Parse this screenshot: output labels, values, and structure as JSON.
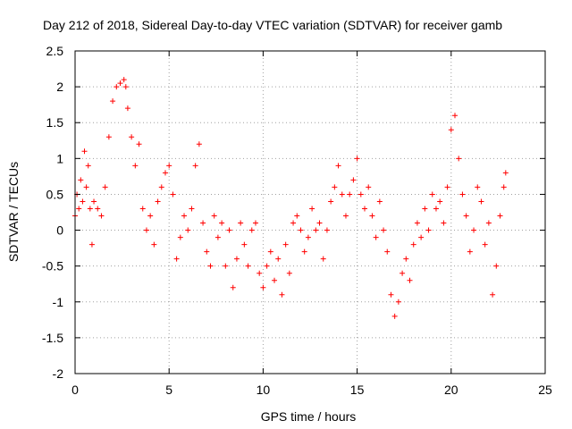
{
  "chart_data": {
    "type": "scatter",
    "title": "Day 212 of 2018, Sidereal Day-to-day VTEC variation (SDTVAR) for receiver gamb",
    "xlabel": "GPS time / hours",
    "ylabel": "SDTVAR / TECUs",
    "xlim": [
      0,
      25
    ],
    "ylim": [
      -2,
      2.5
    ],
    "xticks": [
      "0",
      "5",
      "10",
      "15",
      "20",
      "25"
    ],
    "yticks": [
      "-2",
      "-1.5",
      "-1",
      "-0.5",
      "0",
      "0.5",
      "1",
      "1.5",
      "2",
      "2.5"
    ],
    "grid": true,
    "marker": "+",
    "color": "#ff0000",
    "series": [
      {
        "name": "SDTVAR",
        "x": [
          0.0,
          0.1,
          0.2,
          0.3,
          0.4,
          0.5,
          0.6,
          0.7,
          0.8,
          0.9,
          1.0,
          1.2,
          1.4,
          1.6,
          1.8,
          2.0,
          2.2,
          2.4,
          2.6,
          2.7,
          2.8,
          3.0,
          3.2,
          3.4,
          3.6,
          3.8,
          4.0,
          4.2,
          4.4,
          4.6,
          4.8,
          5.0,
          5.2,
          5.4,
          5.6,
          5.8,
          6.0,
          6.2,
          6.4,
          6.6,
          6.8,
          7.0,
          7.2,
          7.4,
          7.6,
          7.8,
          8.0,
          8.2,
          8.4,
          8.6,
          8.8,
          9.0,
          9.2,
          9.4,
          9.6,
          9.8,
          10.0,
          10.2,
          10.4,
          10.6,
          10.8,
          11.0,
          11.2,
          11.4,
          11.6,
          11.8,
          12.0,
          12.2,
          12.4,
          12.6,
          12.8,
          13.0,
          13.2,
          13.4,
          13.6,
          13.8,
          14.0,
          14.2,
          14.4,
          14.6,
          14.8,
          15.0,
          15.2,
          15.4,
          15.6,
          15.8,
          16.0,
          16.2,
          16.4,
          16.6,
          16.8,
          17.0,
          17.2,
          17.4,
          17.6,
          17.8,
          18.0,
          18.2,
          18.4,
          18.6,
          18.8,
          19.0,
          19.2,
          19.4,
          19.6,
          19.8,
          20.0,
          20.2,
          20.4,
          20.6,
          20.8,
          21.0,
          21.2,
          21.4,
          21.6,
          21.8,
          22.0,
          22.2,
          22.4,
          22.6,
          22.8,
          22.9
        ],
        "y": [
          0.2,
          0.5,
          0.3,
          0.7,
          0.4,
          1.1,
          0.6,
          0.9,
          0.3,
          -0.2,
          0.4,
          0.3,
          0.2,
          0.6,
          1.3,
          1.8,
          2.0,
          2.05,
          2.1,
          2.0,
          1.7,
          1.3,
          0.9,
          1.2,
          0.3,
          0.0,
          0.2,
          -0.2,
          0.4,
          0.6,
          0.8,
          0.9,
          0.5,
          -0.4,
          -0.1,
          0.2,
          0.0,
          0.3,
          0.9,
          1.2,
          0.1,
          -0.3,
          -0.5,
          0.2,
          -0.1,
          0.1,
          -0.5,
          0.0,
          -0.8,
          -0.4,
          0.1,
          -0.2,
          -0.5,
          0.0,
          0.1,
          -0.6,
          -0.8,
          -0.5,
          -0.3,
          -0.7,
          -0.4,
          -0.9,
          -0.2,
          -0.6,
          0.1,
          0.2,
          0.0,
          -0.3,
          -0.1,
          0.3,
          0.0,
          0.1,
          -0.4,
          0.0,
          0.4,
          0.6,
          0.9,
          0.5,
          0.2,
          0.5,
          0.7,
          1.0,
          0.5,
          0.3,
          0.6,
          0.2,
          -0.1,
          0.4,
          0.0,
          -0.3,
          -0.9,
          -1.2,
          -1.0,
          -0.6,
          -0.4,
          -0.7,
          -0.2,
          0.1,
          -0.1,
          0.3,
          0.0,
          0.5,
          0.3,
          0.4,
          0.1,
          0.6,
          1.4,
          1.6,
          1.0,
          0.5,
          0.2,
          -0.3,
          0.0,
          0.6,
          0.4,
          -0.2,
          0.1,
          -0.9,
          -0.5,
          0.2,
          0.6,
          0.8
        ]
      }
    ]
  }
}
